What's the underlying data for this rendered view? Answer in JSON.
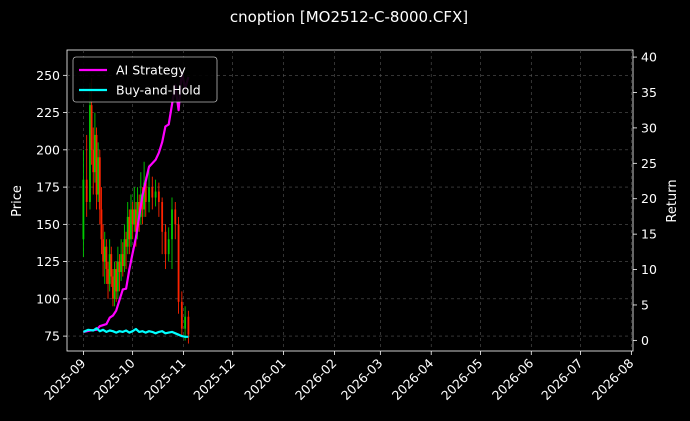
{
  "chart_data": {
    "type": "line",
    "title": "cnoption [MO2512-C-8000.CFX]",
    "xlabel": "",
    "ylabel_left": "Price",
    "ylabel_right": "Return",
    "ylim_left": [
      65,
      267
    ],
    "ylim_right": [
      -1.5,
      41
    ],
    "yticks_left": [
      75,
      100,
      125,
      150,
      175,
      200,
      225,
      250
    ],
    "yticks_right": [
      0,
      5,
      10,
      15,
      20,
      25,
      30,
      35,
      40
    ],
    "x_dates": [
      "2025-09",
      "2025-10",
      "2025-11",
      "2025-12",
      "2026-01",
      "2026-02",
      "2026-03",
      "2026-04",
      "2026-05",
      "2026-06",
      "2026-07",
      "2026-08"
    ],
    "xlim_days": [
      -10,
      335
    ],
    "grid": true,
    "legend_position": "top-left",
    "series": [
      {
        "name": "AI Strategy",
        "color": "#ff00ff",
        "axis": "right",
        "points": [
          [
            0,
            1.2
          ],
          [
            4,
            1.4
          ],
          [
            8,
            1.5
          ],
          [
            10,
            2.0
          ],
          [
            14,
            2.3
          ],
          [
            16,
            3.2
          ],
          [
            18,
            3.5
          ],
          [
            20,
            4.2
          ],
          [
            24,
            7.2
          ],
          [
            26,
            7.3
          ],
          [
            28,
            10.0
          ],
          [
            30,
            12.3
          ],
          [
            32,
            14.5
          ],
          [
            34,
            17.5
          ],
          [
            36,
            20.5
          ],
          [
            40,
            24.5
          ],
          [
            44,
            25.5
          ],
          [
            46,
            26.5
          ],
          [
            48,
            28.0
          ],
          [
            50,
            30.2
          ],
          [
            52,
            30.5
          ],
          [
            54,
            33.3
          ],
          [
            56,
            36.0
          ],
          [
            58,
            32.5
          ],
          [
            60,
            38.0
          ],
          [
            62,
            35.5
          ],
          [
            64,
            37.2
          ]
        ]
      },
      {
        "name": "Buy-and-Hold",
        "color": "#00ffff",
        "axis": "right",
        "points": [
          [
            0,
            1.2
          ],
          [
            3,
            1.5
          ],
          [
            6,
            1.4
          ],
          [
            8,
            1.7
          ],
          [
            10,
            1.3
          ],
          [
            12,
            1.5
          ],
          [
            14,
            1.2
          ],
          [
            16,
            1.4
          ],
          [
            18,
            1.3
          ],
          [
            20,
            1.1
          ],
          [
            22,
            1.3
          ],
          [
            24,
            1.2
          ],
          [
            26,
            1.4
          ],
          [
            28,
            1.1
          ],
          [
            30,
            1.3
          ],
          [
            32,
            1.6
          ],
          [
            34,
            1.2
          ],
          [
            36,
            1.3
          ],
          [
            38,
            1.1
          ],
          [
            40,
            1.3
          ],
          [
            42,
            1.2
          ],
          [
            44,
            1.0
          ],
          [
            46,
            1.2
          ],
          [
            48,
            1.3
          ],
          [
            50,
            1.0
          ],
          [
            52,
            1.1
          ],
          [
            54,
            1.2
          ],
          [
            56,
            1.0
          ],
          [
            58,
            0.8
          ],
          [
            60,
            0.6
          ],
          [
            62,
            0.5
          ],
          [
            64,
            0.5
          ]
        ]
      }
    ],
    "candles": {
      "axis": "left",
      "up_color": "#00cc00",
      "down_color": "#ff2200",
      "items": [
        [
          0,
          140,
          180,
          128,
          200
        ],
        [
          2,
          180,
          165,
          155,
          210
        ],
        [
          4,
          165,
          230,
          160,
          245
        ],
        [
          5,
          230,
          200,
          190,
          248
        ],
        [
          6,
          200,
          185,
          170,
          215
        ],
        [
          7,
          185,
          210,
          178,
          225
        ],
        [
          8,
          210,
          170,
          160,
          215
        ],
        [
          9,
          170,
          195,
          165,
          205
        ],
        [
          10,
          195,
          160,
          150,
          200
        ],
        [
          11,
          160,
          140,
          130,
          175
        ],
        [
          12,
          140,
          125,
          115,
          150
        ],
        [
          13,
          125,
          135,
          110,
          145
        ],
        [
          14,
          135,
          120,
          110,
          140
        ],
        [
          15,
          120,
          110,
          100,
          125
        ],
        [
          16,
          110,
          130,
          105,
          140
        ],
        [
          17,
          130,
          115,
          108,
          135
        ],
        [
          18,
          115,
          100,
          95,
          120
        ],
        [
          19,
          100,
          120,
          95,
          125
        ],
        [
          20,
          120,
          105,
          98,
          125
        ],
        [
          21,
          105,
          125,
          100,
          135
        ],
        [
          22,
          125,
          118,
          105,
          130
        ],
        [
          23,
          118,
          130,
          112,
          140
        ],
        [
          24,
          130,
          122,
          115,
          138
        ],
        [
          25,
          122,
          140,
          118,
          150
        ],
        [
          26,
          140,
          135,
          120,
          145
        ],
        [
          27,
          135,
          155,
          130,
          165
        ],
        [
          28,
          155,
          140,
          130,
          160
        ],
        [
          29,
          140,
          160,
          135,
          170
        ],
        [
          30,
          160,
          150,
          140,
          165
        ],
        [
          31,
          150,
          160,
          145,
          175
        ],
        [
          32,
          160,
          145,
          135,
          165
        ],
        [
          33,
          145,
          165,
          140,
          175
        ],
        [
          34,
          165,
          155,
          145,
          170
        ],
        [
          35,
          155,
          170,
          150,
          185
        ],
        [
          36,
          170,
          160,
          150,
          175
        ],
        [
          37,
          160,
          178,
          155,
          192
        ],
        [
          38,
          178,
          165,
          155,
          182
        ],
        [
          40,
          165,
          175,
          158,
          190
        ],
        [
          42,
          175,
          168,
          160,
          182
        ],
        [
          44,
          168,
          172,
          162,
          180
        ],
        [
          46,
          172,
          165,
          155,
          178
        ],
        [
          48,
          165,
          145,
          130,
          168
        ],
        [
          50,
          145,
          130,
          120,
          150
        ],
        [
          52,
          130,
          140,
          125,
          148
        ],
        [
          54,
          140,
          160,
          120,
          168
        ],
        [
          56,
          160,
          150,
          140,
          165
        ],
        [
          58,
          150,
          98,
          90,
          155
        ],
        [
          60,
          98,
          80,
          75,
          105
        ],
        [
          62,
          80,
          88,
          72,
          95
        ],
        [
          64,
          88,
          76,
          70,
          92
        ]
      ]
    }
  }
}
